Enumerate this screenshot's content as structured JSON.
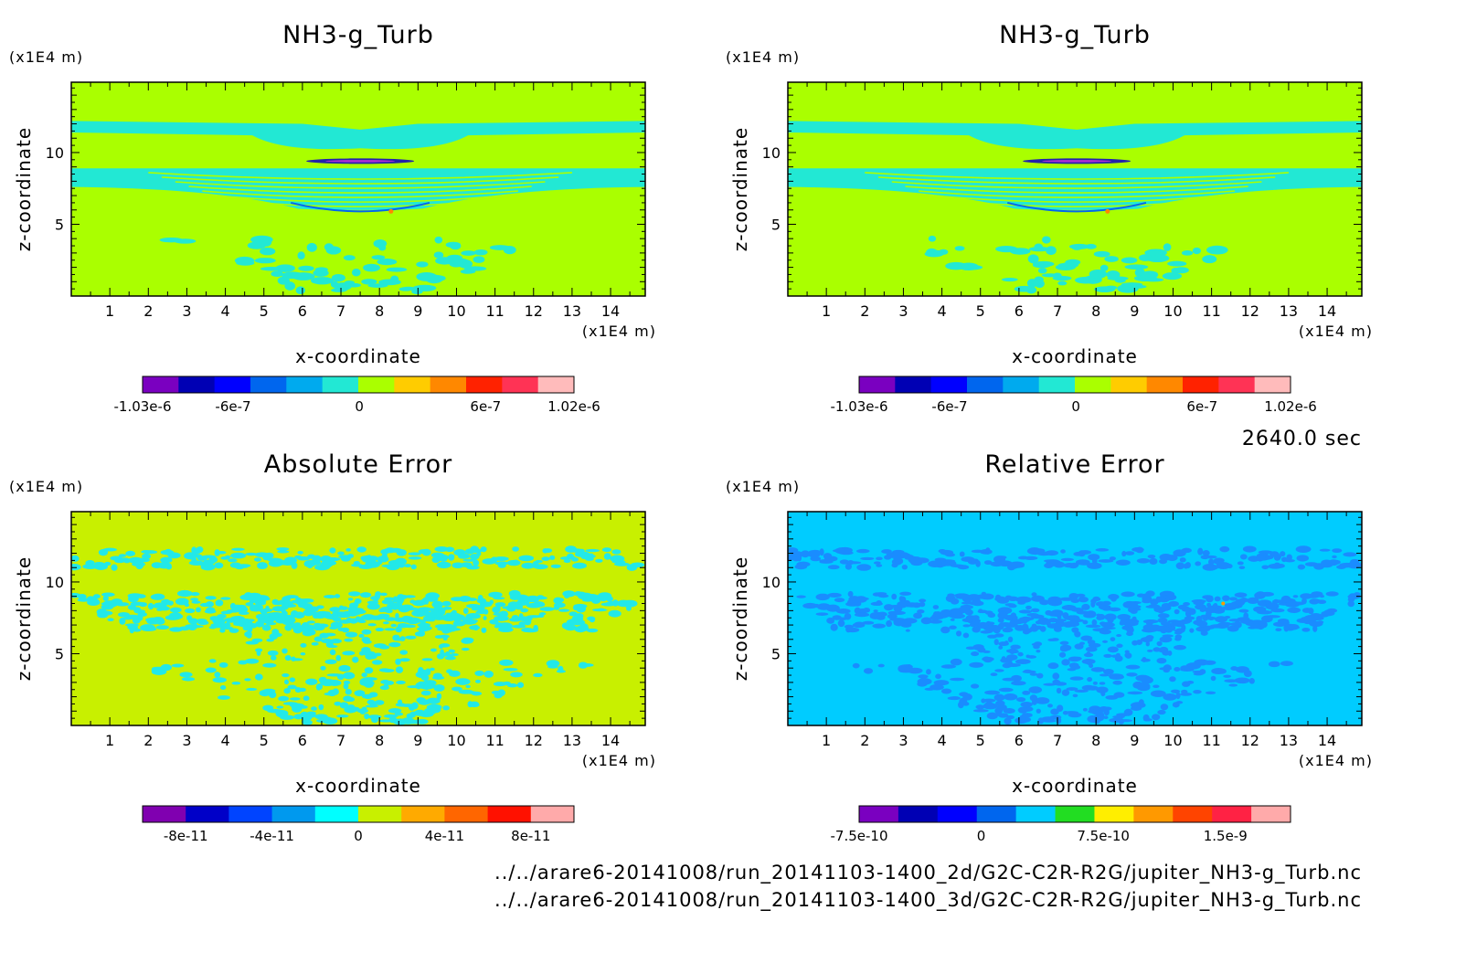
{
  "time_label": "2640.0 sec",
  "file_paths": [
    "../../arare6-20141008/run_20141103-1400_2d/G2C-C2R-R2G/jupiter_NH3-g_Turb.nc",
    "../../arare6-20141008/run_20141103-1400_3d/G2C-C2R-R2G/jupiter_NH3-g_Turb.nc"
  ],
  "colors": {
    "background_high": "#aaff00",
    "pattern_low": "#22e8d4",
    "abs_background": "#c8f000",
    "abs_pattern": "#22e8e8",
    "rel_background": "#00ccff",
    "rel_pattern": "#1a8cff"
  },
  "chart_data": [
    {
      "id": "nh3-turb-2d",
      "type": "heatmap",
      "title": "NH3-g_Turb",
      "xlabel": "x-coordinate",
      "ylabel": "z-coordinate",
      "x_unit": "(x1E4 m)",
      "y_unit": "(x1E4 m)",
      "xlim": [
        0,
        14.9
      ],
      "ylim": [
        0,
        14.9
      ],
      "x_ticks": [
        1,
        2,
        3,
        4,
        5,
        6,
        7,
        8,
        9,
        10,
        11,
        12,
        13,
        14
      ],
      "y_ticks": [
        5,
        10
      ],
      "colorbar": {
        "colors": [
          "#7a00c0",
          "#0000b4",
          "#0000ff",
          "#0066ee",
          "#00aaee",
          "#22e8d4",
          "#aaff00",
          "#ffcc00",
          "#ff8800",
          "#ff2200",
          "#ff3355",
          "#ffbbbb"
        ],
        "tick_labels": [
          "-1.03e-6",
          "-6e-7",
          "0",
          "6e-7",
          "1.02e-6"
        ],
        "tick_values": [
          -1.03e-06,
          -6e-07,
          0,
          6e-07,
          1.02e-06
        ],
        "range": [
          -1.03e-06,
          1.02e-06
        ]
      }
    },
    {
      "id": "nh3-turb-3d",
      "type": "heatmap",
      "title": "NH3-g_Turb",
      "xlabel": "x-coordinate",
      "ylabel": "z-coordinate",
      "x_unit": "(x1E4 m)",
      "y_unit": "(x1E4 m)",
      "xlim": [
        0,
        14.9
      ],
      "ylim": [
        0,
        14.9
      ],
      "x_ticks": [
        1,
        2,
        3,
        4,
        5,
        6,
        7,
        8,
        9,
        10,
        11,
        12,
        13,
        14
      ],
      "y_ticks": [
        5,
        10
      ],
      "colorbar": {
        "colors": [
          "#7a00c0",
          "#0000b4",
          "#0000ff",
          "#0066ee",
          "#00aaee",
          "#22e8d4",
          "#aaff00",
          "#ffcc00",
          "#ff8800",
          "#ff2200",
          "#ff3355",
          "#ffbbbb"
        ],
        "tick_labels": [
          "-1.03e-6",
          "-6e-7",
          "0",
          "6e-7",
          "1.02e-6"
        ],
        "tick_values": [
          -1.03e-06,
          -6e-07,
          0,
          6e-07,
          1.02e-06
        ],
        "range": [
          -1.03e-06,
          1.02e-06
        ]
      }
    },
    {
      "id": "absolute-error",
      "type": "heatmap",
      "title": "Absolute Error",
      "xlabel": "x-coordinate",
      "ylabel": "z-coordinate",
      "x_unit": "(x1E4 m)",
      "y_unit": "(x1E4 m)",
      "xlim": [
        0,
        14.9
      ],
      "ylim": [
        0,
        14.9
      ],
      "x_ticks": [
        1,
        2,
        3,
        4,
        5,
        6,
        7,
        8,
        9,
        10,
        11,
        12,
        13,
        14
      ],
      "y_ticks": [
        5,
        10
      ],
      "colorbar": {
        "colors": [
          "#8000b0",
          "#0000c8",
          "#0044ff",
          "#0099ee",
          "#00ffff",
          "#c8f000",
          "#ffaa00",
          "#ff6600",
          "#ff1100",
          "#ffaaaa"
        ],
        "tick_labels": [
          "-8e-11",
          "-4e-11",
          "0",
          "4e-11",
          "8e-11"
        ],
        "tick_values": [
          -8e-11,
          -4e-11,
          0,
          4e-11,
          8e-11
        ],
        "range": [
          -1e-10,
          1e-10
        ]
      }
    },
    {
      "id": "relative-error",
      "type": "heatmap",
      "title": "Relative Error",
      "xlabel": "x-coordinate",
      "ylabel": "z-coordinate",
      "x_unit": "(x1E4 m)",
      "y_unit": "(x1E4 m)",
      "xlim": [
        0,
        14.9
      ],
      "ylim": [
        0,
        14.9
      ],
      "x_ticks": [
        1,
        2,
        3,
        4,
        5,
        6,
        7,
        8,
        9,
        10,
        11,
        12,
        13,
        14
      ],
      "y_ticks": [
        5,
        10
      ],
      "colorbar": {
        "colors": [
          "#7a00c0",
          "#0000b4",
          "#0000ff",
          "#0066ee",
          "#00ccff",
          "#22dd22",
          "#ffee00",
          "#ff9900",
          "#ff4400",
          "#ff2244",
          "#ffaaaa"
        ],
        "tick_labels": [
          "-7.5e-10",
          "0",
          "7.5e-10",
          "1.5e-9"
        ],
        "tick_values": [
          -7.5e-10,
          0,
          7.5e-10,
          1.5e-09
        ],
        "range": [
          -7.5e-10,
          1.9e-09
        ]
      }
    }
  ]
}
